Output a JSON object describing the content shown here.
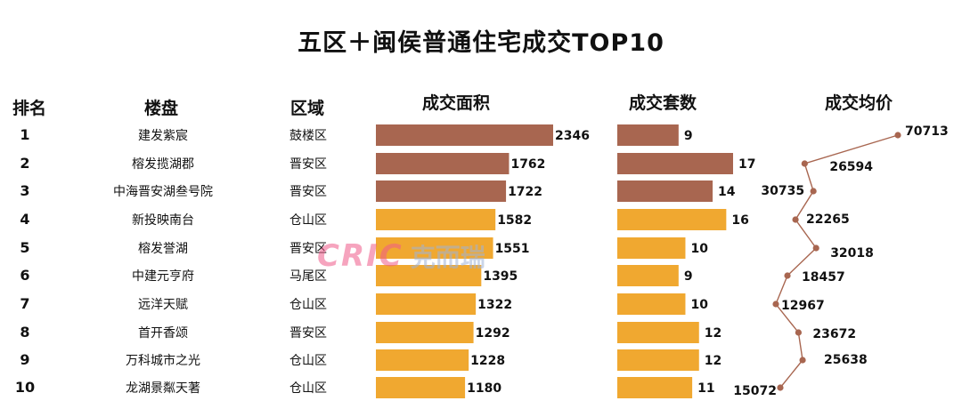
{
  "title": "五区＋闽侯普通住宅成交TOP10",
  "headers": {
    "rank": "排名",
    "project": "楼盘",
    "district": "区域",
    "area": "成交面积",
    "units": "成交套数",
    "price": "成交均价"
  },
  "watermark": {
    "logo": "CRIC",
    "text": "克而瑞"
  },
  "colors": {
    "top3": "#a86650",
    "rest": "#f0a830",
    "line": "#a86650"
  },
  "chart_data": {
    "type": "table",
    "rows": [
      {
        "rank": "1",
        "name": "建发紫宸",
        "district": "鼓楼区",
        "area": 2346,
        "units": 9,
        "price": 70713
      },
      {
        "rank": "2",
        "name": "榕发揽湖郡",
        "district": "晋安区",
        "area": 1762,
        "units": 17,
        "price": 26594
      },
      {
        "rank": "3",
        "name": "中海晋安湖叁号院",
        "district": "晋安区",
        "area": 1722,
        "units": 14,
        "price": 30735
      },
      {
        "rank": "4",
        "name": "新投映南台",
        "district": "仓山区",
        "area": 1582,
        "units": 16,
        "price": 22265
      },
      {
        "rank": "5",
        "name": "榕发誉湖",
        "district": "晋安区",
        "area": 1551,
        "units": 10,
        "price": 32018
      },
      {
        "rank": "6",
        "name": "中建元亨府",
        "district": "马尾区",
        "area": 1395,
        "units": 9,
        "price": 18457
      },
      {
        "rank": "7",
        "name": "远洋天赋",
        "district": "仓山区",
        "area": 1322,
        "units": 10,
        "price": 12967
      },
      {
        "rank": "8",
        "name": "首开香颂",
        "district": "晋安区",
        "area": 1292,
        "units": 12,
        "price": 23672
      },
      {
        "rank": "9",
        "name": "万科城市之光",
        "district": "仓山区",
        "area": 1228,
        "units": 12,
        "price": 25638
      },
      {
        "rank": "10",
        "name": "龙湖景粼天著",
        "district": "仓山区",
        "area": 1180,
        "units": 11,
        "price": 15072
      }
    ]
  }
}
